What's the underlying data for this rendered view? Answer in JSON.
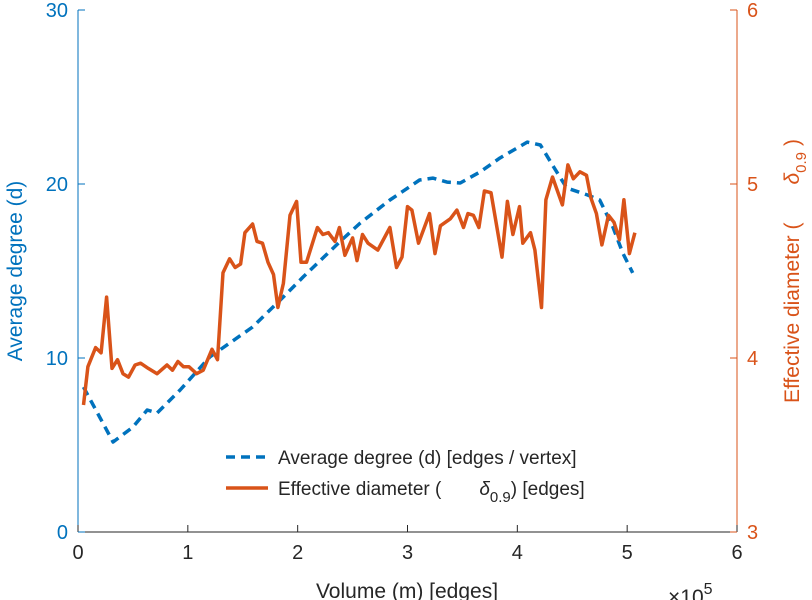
{
  "chart_data": {
    "type": "line",
    "title": "",
    "xlabel": "Volume (m) [edges]",
    "x_multiplier": "×10",
    "x_multiplier_exp": "5",
    "ylabel_left": "Average degree (d)",
    "ylabel_right_prefix": "Effective diameter (",
    "ylabel_right_symbol": "δ",
    "ylabel_right_sub": "0.9",
    "ylabel_right_suffix": ")",
    "xlim": [
      0,
      6
    ],
    "ylim_left": [
      0,
      30
    ],
    "ylim_right": [
      3,
      6
    ],
    "xticks": [
      "0",
      "1",
      "2",
      "3",
      "4",
      "5",
      "6"
    ],
    "yticks_left": [
      "0",
      "10",
      "20",
      "30"
    ],
    "yticks_right": [
      "3",
      "4",
      "5",
      "6"
    ],
    "grid": false,
    "legend_placement": "bottom-center",
    "colors": {
      "left": "#0072BD",
      "right": "#D95319",
      "axis": "#262626"
    },
    "legend": [
      {
        "label": "Average degree (d) [edges / vertex]"
      },
      {
        "label_prefix": "Effective diameter (",
        "symbol": "δ",
        "sub": "0.9",
        "label_suffix": ") [edges]"
      }
    ],
    "series": [
      {
        "name": "Average degree (d) [edges / vertex]",
        "axis": "left",
        "style": "dashed",
        "x": [
          0.05,
          0.32,
          0.5,
          0.63,
          0.72,
          0.93,
          1.2,
          1.59,
          1.87,
          2.05,
          2.39,
          2.57,
          2.84,
          3.11,
          3.23,
          3.36,
          3.48,
          3.66,
          3.84,
          4.09,
          4.21,
          4.33,
          4.45,
          4.64,
          4.75,
          4.87,
          4.96,
          5.05
        ],
        "y": [
          8.33,
          5.17,
          6.03,
          7.01,
          6.84,
          8.16,
          10.06,
          11.78,
          13.51,
          14.66,
          16.72,
          17.76,
          19.08,
          20.23,
          20.34,
          20.11,
          20.06,
          20.69,
          21.49,
          22.41,
          22.24,
          20.98,
          19.77,
          19.37,
          19.08,
          17.53,
          16.03,
          14.89
        ]
      },
      {
        "name": "Effective diameter (δ0.9) [edges]",
        "axis": "right",
        "style": "solid",
        "x": [
          0.05,
          0.09,
          0.16,
          0.21,
          0.26,
          0.31,
          0.36,
          0.41,
          0.46,
          0.52,
          0.57,
          0.64,
          0.72,
          0.81,
          0.86,
          0.91,
          0.96,
          1.01,
          1.08,
          1.14,
          1.22,
          1.27,
          1.32,
          1.38,
          1.43,
          1.48,
          1.52,
          1.59,
          1.63,
          1.68,
          1.73,
          1.78,
          1.82,
          1.87,
          1.93,
          1.99,
          2.03,
          2.08,
          2.18,
          2.23,
          2.28,
          2.34,
          2.38,
          2.43,
          2.5,
          2.54,
          2.59,
          2.64,
          2.73,
          2.84,
          2.9,
          2.95,
          3.0,
          3.04,
          3.1,
          3.2,
          3.25,
          3.3,
          3.39,
          3.45,
          3.51,
          3.55,
          3.6,
          3.65,
          3.7,
          3.76,
          3.86,
          3.91,
          3.96,
          4.02,
          4.05,
          4.12,
          4.16,
          4.22,
          4.26,
          4.32,
          4.41,
          4.46,
          4.51,
          4.57,
          4.63,
          4.67,
          4.72,
          4.77,
          4.83,
          4.88,
          4.93,
          4.97,
          5.02,
          5.07
        ],
        "y": [
          3.73,
          3.95,
          4.06,
          4.03,
          4.35,
          3.94,
          3.99,
          3.91,
          3.89,
          3.96,
          3.97,
          3.94,
          3.91,
          3.96,
          3.93,
          3.98,
          3.95,
          3.95,
          3.91,
          3.93,
          4.05,
          3.99,
          4.49,
          4.57,
          4.52,
          4.54,
          4.72,
          4.77,
          4.67,
          4.66,
          4.55,
          4.48,
          4.29,
          4.43,
          4.82,
          4.9,
          4.55,
          4.55,
          4.75,
          4.71,
          4.72,
          4.67,
          4.75,
          4.59,
          4.69,
          4.56,
          4.71,
          4.66,
          4.62,
          4.75,
          4.52,
          4.58,
          4.87,
          4.85,
          4.66,
          4.83,
          4.6,
          4.76,
          4.8,
          4.85,
          4.75,
          4.83,
          4.82,
          4.75,
          4.96,
          4.95,
          4.58,
          4.9,
          4.71,
          4.87,
          4.66,
          4.72,
          4.62,
          4.29,
          4.91,
          5.04,
          4.88,
          5.11,
          5.03,
          5.07,
          5.05,
          4.92,
          4.83,
          4.65,
          4.82,
          4.78,
          4.68,
          4.91,
          4.6,
          4.72
        ]
      }
    ]
  }
}
